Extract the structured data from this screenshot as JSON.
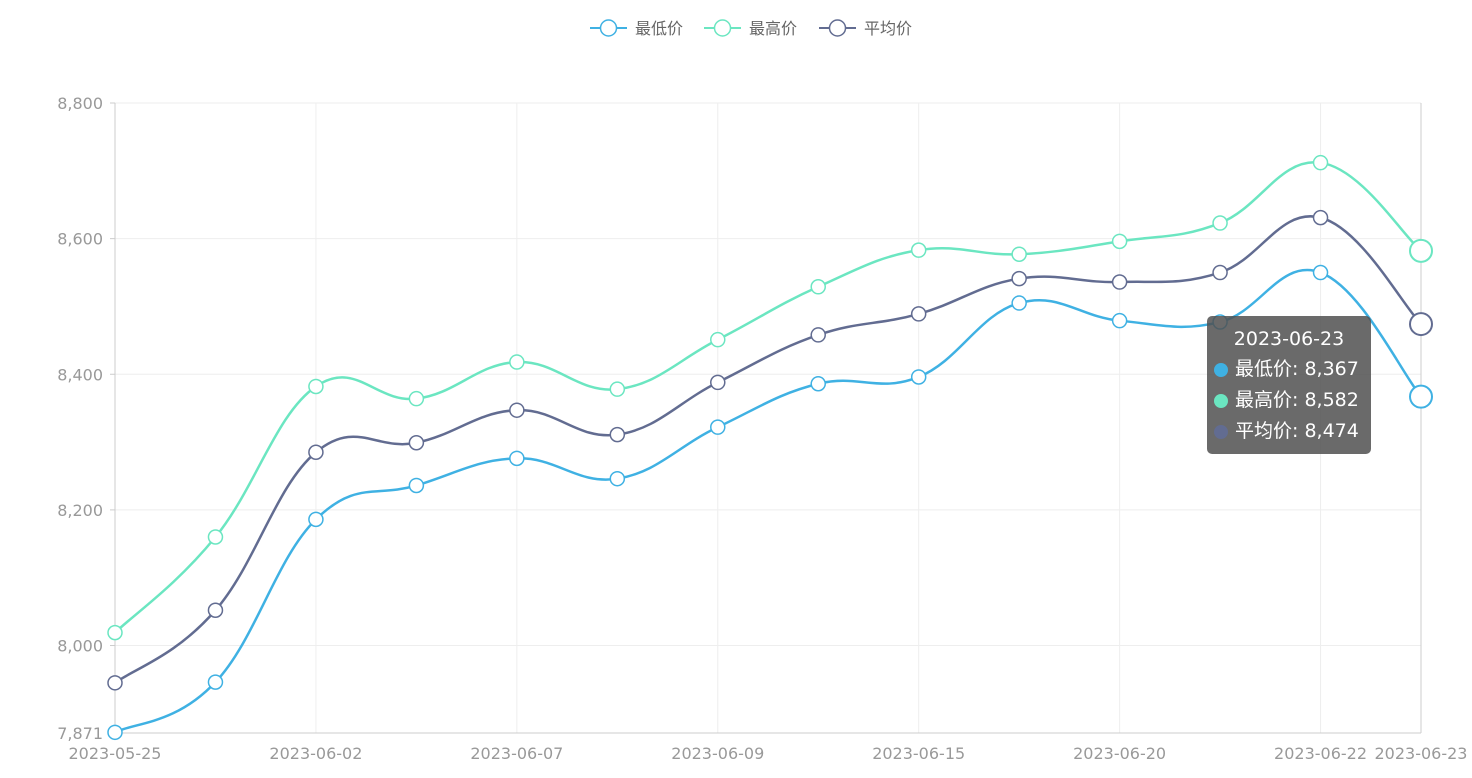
{
  "chart_data": {
    "type": "line",
    "smooth": true,
    "title": "",
    "xlabel": "",
    "ylabel": "",
    "ylim": [
      7871,
      8800
    ],
    "y_ticks": [
      7871,
      8000,
      8200,
      8400,
      8600,
      8800
    ],
    "y_tick_labels": [
      "7,871",
      "8,000",
      "8,200",
      "8,400",
      "8,600",
      "8,800"
    ],
    "categories": [
      "2023-05-25",
      "",
      "2023-06-02",
      "",
      "2023-06-07",
      "",
      "2023-06-09",
      "",
      "2023-06-15",
      "",
      "2023-06-20",
      "",
      "2023-06-22",
      "2023-06-23"
    ],
    "x_tick_labels": [
      "2023-05-25",
      "2023-06-02",
      "2023-06-07",
      "2023-06-09",
      "2023-06-15",
      "2023-06-20",
      "2023-06-22"
    ],
    "grid": true,
    "legend_position": "top-center",
    "series": [
      {
        "name": "最低价",
        "color": "#3fb1e3",
        "values": [
          7872,
          7946,
          8186,
          8236,
          8276,
          8246,
          8322,
          8386,
          8396,
          8505,
          8479,
          8477,
          8550,
          8367
        ]
      },
      {
        "name": "最高价",
        "color": "#6be6c1",
        "values": [
          8019,
          8160,
          8382,
          8364,
          8418,
          8378,
          8451,
          8529,
          8583,
          8577,
          8596,
          8623,
          8712,
          8582
        ]
      },
      {
        "name": "平均价",
        "color": "#626c91",
        "values": [
          7945,
          8052,
          8285,
          8299,
          8347,
          8311,
          8388,
          8458,
          8489,
          8541,
          8536,
          8550,
          8631,
          8474
        ]
      }
    ]
  },
  "tooltip": {
    "date": "2023-06-23",
    "rows": [
      {
        "text": "最低价: 8,367",
        "color": "#3fb1e3"
      },
      {
        "text": "最高价: 8,582",
        "color": "#6be6c1"
      },
      {
        "text": "平均价: 8,474",
        "color": "#626c91"
      }
    ]
  }
}
